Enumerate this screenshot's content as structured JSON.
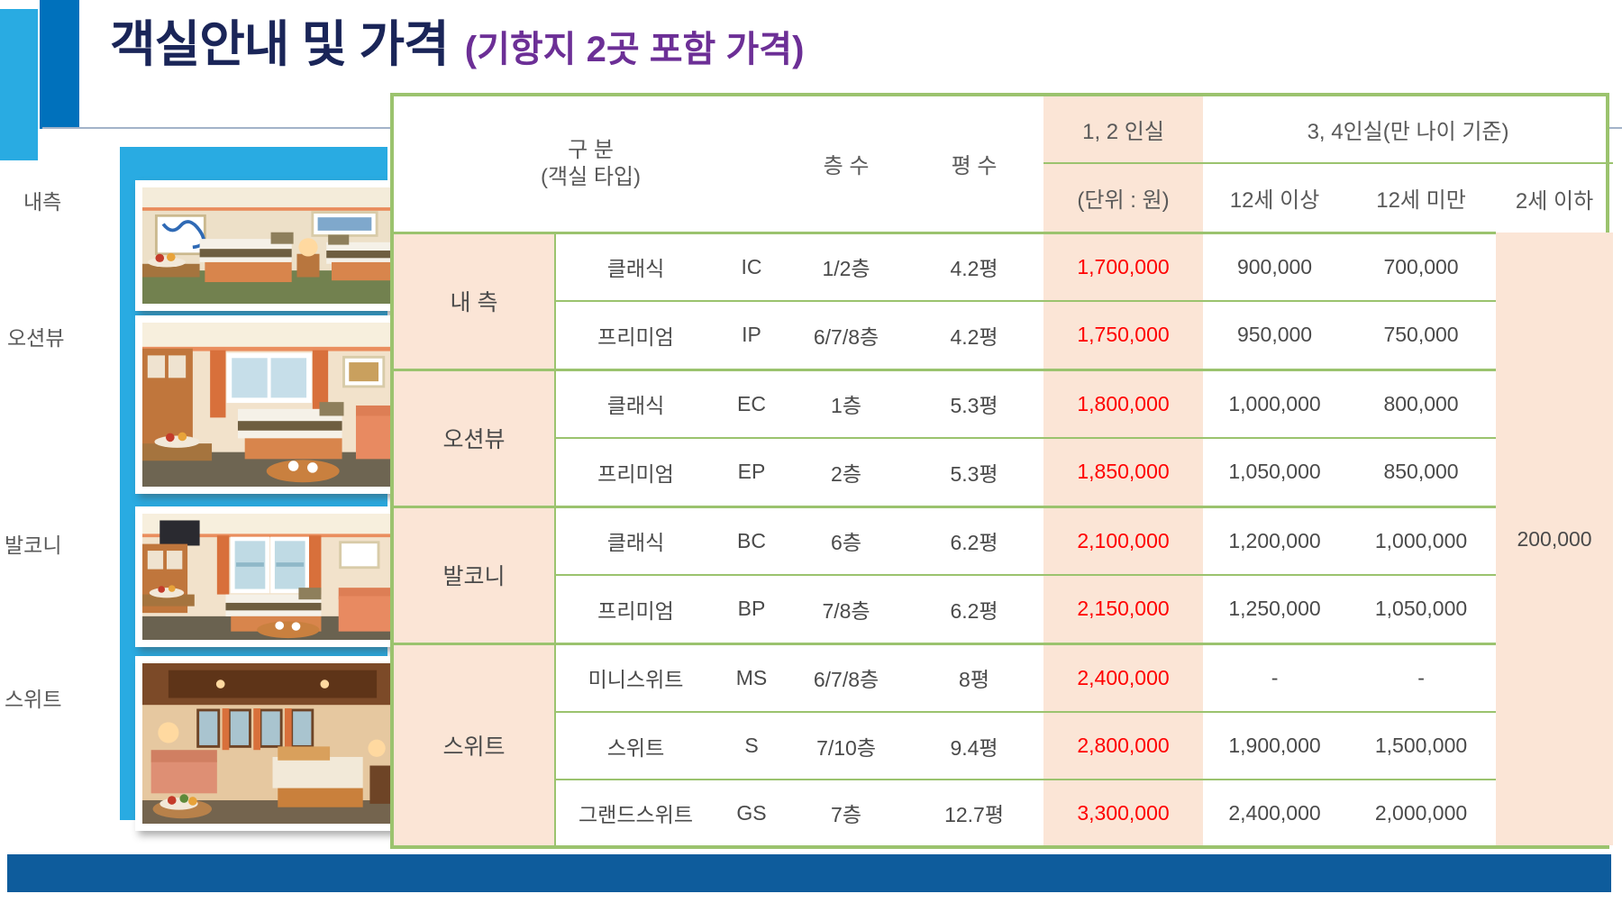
{
  "title": {
    "main": "객실안내 및 가격",
    "sub": "(기항지 2곳 포함 가격)"
  },
  "sidebar": {
    "labels": [
      "내측",
      "오션뷰",
      "발코니",
      "스위트"
    ],
    "photos": [
      "inside-cabin-photo",
      "oceanview-cabin-photo",
      "balcony-cabin-photo",
      "suite-cabin-photo"
    ]
  },
  "table": {
    "header": {
      "category": "구 분",
      "category_sub": "(객실 타입)",
      "floors": "층 수",
      "size": "평 수",
      "occ12": "1, 2 인실",
      "occ12_unit": "(단위 : 원)",
      "occ34": "3, 4인실(만 나이 기준)",
      "age_over12": "12세 이상",
      "age_under12": "12세 미만",
      "age_under2": "2세 이하"
    },
    "groups": [
      {
        "name": "내 측",
        "rows": [
          {
            "type": "클래식",
            "code": "IC",
            "floor": "1/2층",
            "size": "4.2평",
            "price12": "1,700,000",
            "over12": "900,000",
            "under12": "700,000"
          },
          {
            "type": "프리미엄",
            "code": "IP",
            "floor": "6/7/8층",
            "size": "4.2평",
            "price12": "1,750,000",
            "over12": "950,000",
            "under12": "750,000"
          }
        ]
      },
      {
        "name": "오션뷰",
        "rows": [
          {
            "type": "클래식",
            "code": "EC",
            "floor": "1층",
            "size": "5.3평",
            "price12": "1,800,000",
            "over12": "1,000,000",
            "under12": "800,000"
          },
          {
            "type": "프리미엄",
            "code": "EP",
            "floor": "2층",
            "size": "5.3평",
            "price12": "1,850,000",
            "over12": "1,050,000",
            "under12": "850,000"
          }
        ]
      },
      {
        "name": "발코니",
        "rows": [
          {
            "type": "클래식",
            "code": "BC",
            "floor": "6층",
            "size": "6.2평",
            "price12": "2,100,000",
            "over12": "1,200,000",
            "under12": "1,000,000"
          },
          {
            "type": "프리미엄",
            "code": "BP",
            "floor": "7/8층",
            "size": "6.2평",
            "price12": "2,150,000",
            "over12": "1,250,000",
            "under12": "1,050,000"
          }
        ]
      },
      {
        "name": "스위트",
        "rows": [
          {
            "type": "미니스위트",
            "code": "MS",
            "floor": "6/7/8층",
            "size": "8평",
            "price12": "2,400,000",
            "over12": "-",
            "under12": "-"
          },
          {
            "type": "스위트",
            "code": "S",
            "floor": "7/10층",
            "size": "9.4평",
            "price12": "2,800,000",
            "over12": "1,900,000",
            "under12": "1,500,000"
          },
          {
            "type": "그랜드스위트",
            "code": "GS",
            "floor": "7층",
            "size": "12.7평",
            "price12": "3,300,000",
            "over12": "2,400,000",
            "under12": "2,000,000"
          }
        ]
      }
    ],
    "under2_price": "200,000"
  },
  "colors": {
    "accent_navy": "#1A2558",
    "accent_purple": "#6C2F96",
    "table_border_green": "#9BC36E",
    "cell_pink": "#FBE5D6",
    "price_red": "#FF0000",
    "bright_blue": "#29ABE2",
    "deep_blue": "#0071BC",
    "footer_blue": "#0E5C9C"
  }
}
